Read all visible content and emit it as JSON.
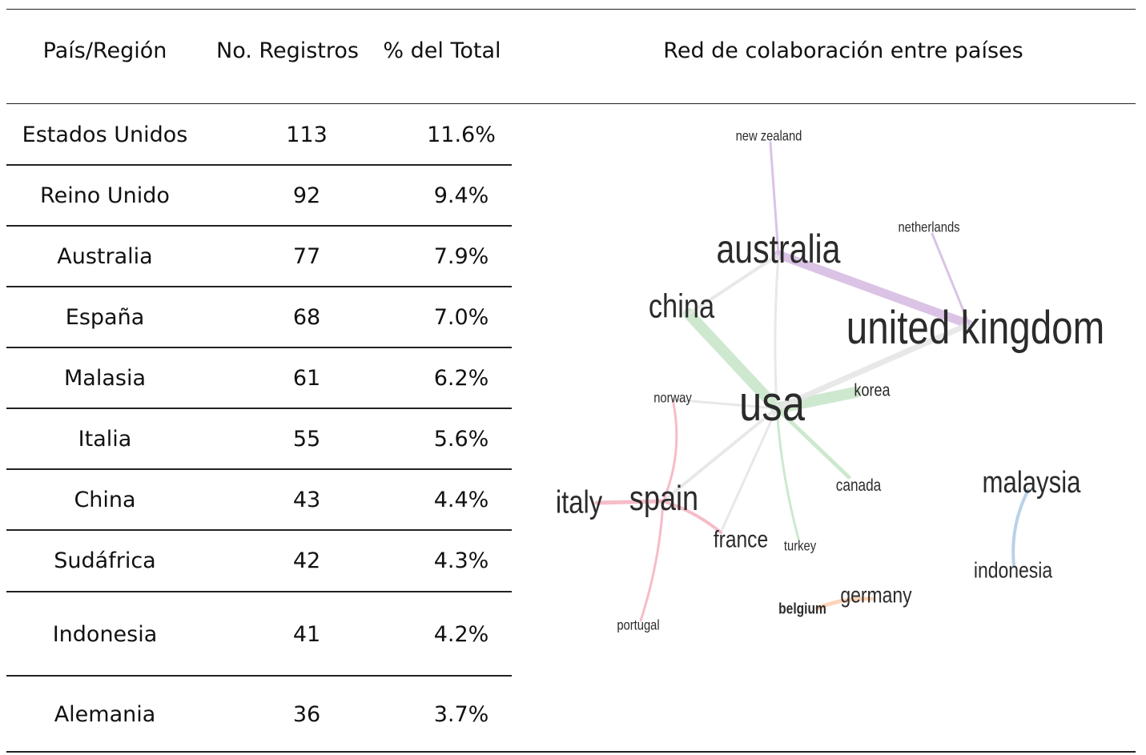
{
  "headers": {
    "country": "País/Región",
    "records": "No. Registros",
    "percent": "% del Total",
    "network": "Red de colaboración entre países"
  },
  "rows": [
    {
      "country": "Estados Unidos",
      "records": "113",
      "percent": "11.6%"
    },
    {
      "country": "Reino Unido",
      "records": "92",
      "percent": "9.4%"
    },
    {
      "country": "Australia",
      "records": "77",
      "percent": "7.9%"
    },
    {
      "country": "España",
      "records": "68",
      "percent": "7.0%"
    },
    {
      "country": "Malasia",
      "records": "61",
      "percent": "6.2%"
    },
    {
      "country": "Italia",
      "records": "55",
      "percent": "5.6%"
    },
    {
      "country": "China",
      "records": "43",
      "percent": "4.4%"
    },
    {
      "country": "Sudáfrica",
      "records": "42",
      "percent": "4.3%"
    },
    {
      "country": "Indonesia",
      "records": "41",
      "percent": "4.2%"
    },
    {
      "country": "Alemania",
      "records": "36",
      "percent": "3.7%"
    }
  ],
  "network": {
    "nodes": [
      {
        "id": "usa",
        "label": "usa"
      },
      {
        "id": "united_kingdom",
        "label": "united kingdom"
      },
      {
        "id": "australia",
        "label": "australia"
      },
      {
        "id": "china",
        "label": "china"
      },
      {
        "id": "spain",
        "label": "spain"
      },
      {
        "id": "italy",
        "label": "italy"
      },
      {
        "id": "malaysia",
        "label": "malaysia"
      },
      {
        "id": "indonesia",
        "label": "indonesia"
      },
      {
        "id": "germany",
        "label": "germany"
      },
      {
        "id": "belgium",
        "label": "belgium"
      },
      {
        "id": "france",
        "label": "france"
      },
      {
        "id": "korea",
        "label": "korea"
      },
      {
        "id": "canada",
        "label": "canada"
      },
      {
        "id": "turkey",
        "label": "turkey"
      },
      {
        "id": "norway",
        "label": "norway"
      },
      {
        "id": "portugal",
        "label": "portugal"
      },
      {
        "id": "new_zealand",
        "label": "new zealand"
      },
      {
        "id": "netherlands",
        "label": "netherlands"
      }
    ],
    "edges": [
      {
        "from": "australia",
        "to": "united_kingdom",
        "color": "#d7bde2"
      },
      {
        "from": "china",
        "to": "usa",
        "color": "#c8e6c9"
      },
      {
        "from": "usa",
        "to": "korea",
        "color": "#c8e6c9"
      },
      {
        "from": "usa",
        "to": "canada",
        "color": "#c8e6c9"
      },
      {
        "from": "usa",
        "to": "turkey",
        "color": "#c8e6c9"
      },
      {
        "from": "usa",
        "to": "united_kingdom",
        "color": "#e6e6e6"
      },
      {
        "from": "usa",
        "to": "australia",
        "color": "#e6e6e6"
      },
      {
        "from": "australia",
        "to": "china",
        "color": "#e6e6e6"
      },
      {
        "from": "usa",
        "to": "norway",
        "color": "#e6e6e6"
      },
      {
        "from": "usa",
        "to": "spain",
        "color": "#e6e6e6"
      },
      {
        "from": "usa",
        "to": "france",
        "color": "#e6e6e6"
      },
      {
        "from": "spain",
        "to": "italy",
        "color": "#f4b6c2"
      },
      {
        "from": "spain",
        "to": "france",
        "color": "#f4b6c2"
      },
      {
        "from": "spain",
        "to": "portugal",
        "color": "#f4b6c2"
      },
      {
        "from": "spain",
        "to": "norway",
        "color": "#f4b6c2"
      },
      {
        "from": "australia",
        "to": "new_zealand",
        "color": "#d7bde2"
      },
      {
        "from": "united_kingdom",
        "to": "netherlands",
        "color": "#d7bde2"
      },
      {
        "from": "malaysia",
        "to": "indonesia",
        "color": "#b3cde3"
      },
      {
        "from": "germany",
        "to": "belgium",
        "color": "#fdd0b1"
      }
    ]
  }
}
